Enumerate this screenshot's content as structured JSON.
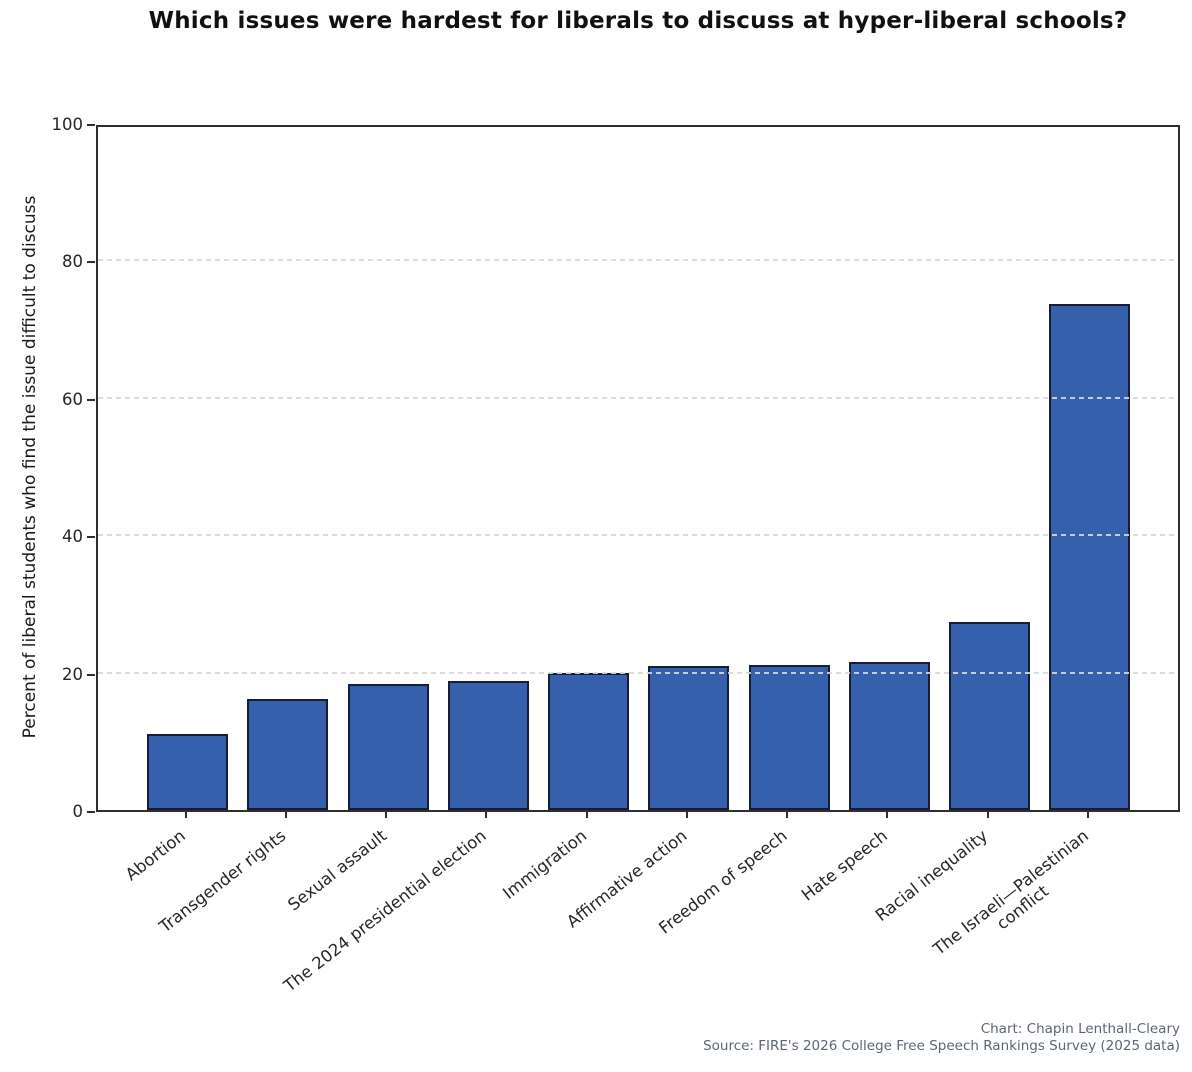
{
  "chart_data": {
    "type": "bar",
    "title": "Which issues were hardest for liberals to discuss at hyper-liberal schools?",
    "xlabel": "",
    "ylabel": "Percent of liberal students who find the issue difficult to discuss",
    "categories": [
      "Abortion",
      "Transgender rights",
      "Sexual assault",
      "The 2024 presidential election",
      "Immigration",
      "Affirmative action",
      "Freedom of speech",
      "Hate speech",
      "Racial inequality",
      "The Israeli—Palestinian\nconflict"
    ],
    "values": [
      11.0,
      16.2,
      18.4,
      18.8,
      19.9,
      20.9,
      21.1,
      21.6,
      27.4,
      73.7
    ],
    "ylim": [
      0,
      100
    ],
    "yticks": [
      0,
      20,
      40,
      60,
      80,
      100
    ],
    "grid": {
      "axis": "y",
      "style": "dashed",
      "gridline_values": [
        20,
        40,
        60,
        80
      ],
      "above_bars": true
    },
    "legend": null,
    "x_label_rotation_deg": 38
  },
  "colors": {
    "bar_fill": "#3560ab",
    "bar_edge": "#161e36",
    "gridline": "#d8d8d8",
    "spine": "#2e2e2e",
    "tick_label": "#262626",
    "title": "#111111",
    "caption": "#5b6672",
    "background": "#ffffff"
  },
  "caption": {
    "credit": "Chart: Chapin Lenthall-Cleary",
    "source": "Source: FIRE's 2026 College Free Speech Rankings Survey (2025 data)"
  }
}
